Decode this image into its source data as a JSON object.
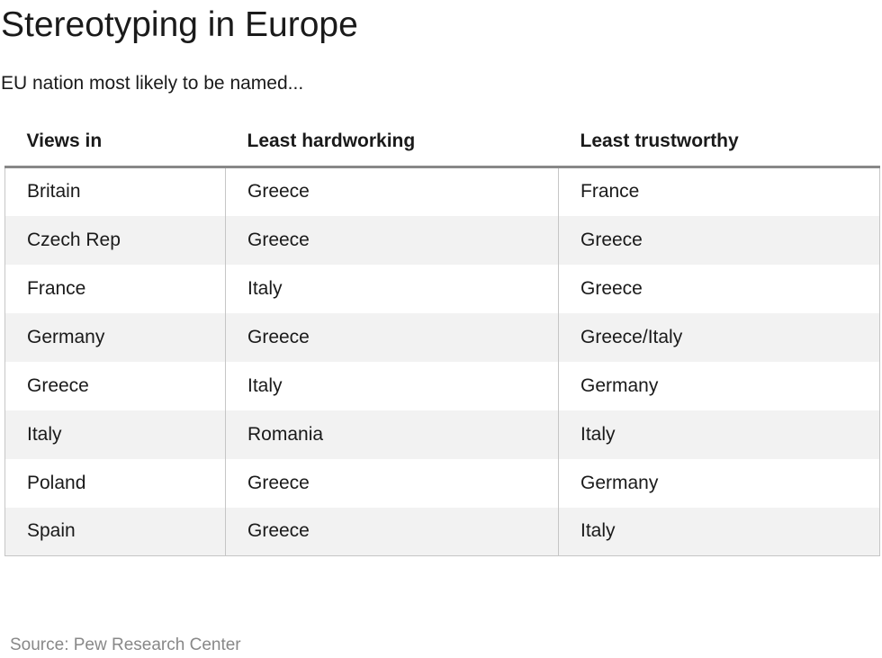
{
  "title": "Stereotyping in Europe",
  "subtitle": "EU nation most likely to be named...",
  "source": "Source: Pew Research Center",
  "colors": {
    "row_stripe": "#f2f2f2",
    "header_rule": "#888888",
    "cell_border": "#c6c6c6",
    "source_text": "#888888"
  },
  "chart_data": {
    "type": "table",
    "title": "Stereotyping in Europe",
    "subtitle": "EU nation most likely to be named...",
    "columns": [
      "Views in",
      "Least hardworking",
      "Least trustworthy"
    ],
    "rows": [
      [
        "Britain",
        "Greece",
        "France"
      ],
      [
        "Czech Rep",
        "Greece",
        "Greece"
      ],
      [
        "France",
        "Italy",
        "Greece"
      ],
      [
        "Germany",
        "Greece",
        "Greece/Italy"
      ],
      [
        "Greece",
        "Italy",
        "Germany"
      ],
      [
        "Italy",
        "Romania",
        "Italy"
      ],
      [
        "Poland",
        "Greece",
        "Germany"
      ],
      [
        "Spain",
        "Greece",
        "Italy"
      ]
    ]
  }
}
